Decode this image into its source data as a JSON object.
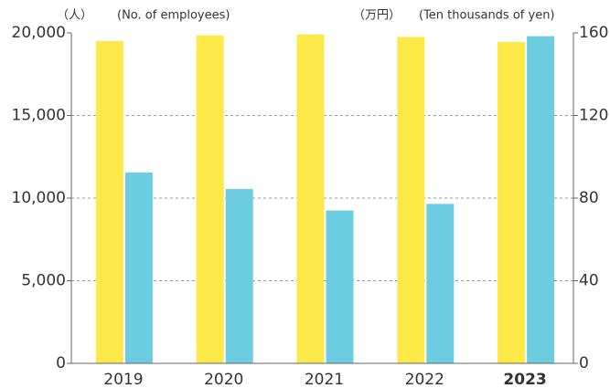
{
  "chart_data": {
    "type": "bar",
    "y_label": "（人）",
    "y_label_en": "(No. of employees)",
    "y2_label": "（万円）",
    "y2_label_en": "(Ten thousands of yen)",
    "categories": [
      "2019",
      "2020",
      "2021",
      "2022",
      "2023"
    ],
    "series": [
      {
        "color": "#fde84a",
        "values": [
          19500,
          19850,
          19900,
          19750,
          19450
        ]
      },
      {
        "color": "#6dcde0",
        "axis": "y2",
        "values": [
          92.4,
          84.4,
          74,
          77.2,
          158.4
        ]
      }
    ],
    "ylim": [
      0,
      20000
    ],
    "yticks": [
      0,
      {
        "value": 5000,
        "label": "5,000"
      },
      {
        "value": 10000,
        "label": "10,000"
      },
      {
        "value": 15000,
        "label": "15,000"
      },
      {
        "value": 20000,
        "label": "20,000"
      }
    ],
    "y2lim": [
      0,
      160
    ],
    "y2ticks": [
      0,
      40,
      80,
      120,
      160
    ],
    "grid": true
  }
}
